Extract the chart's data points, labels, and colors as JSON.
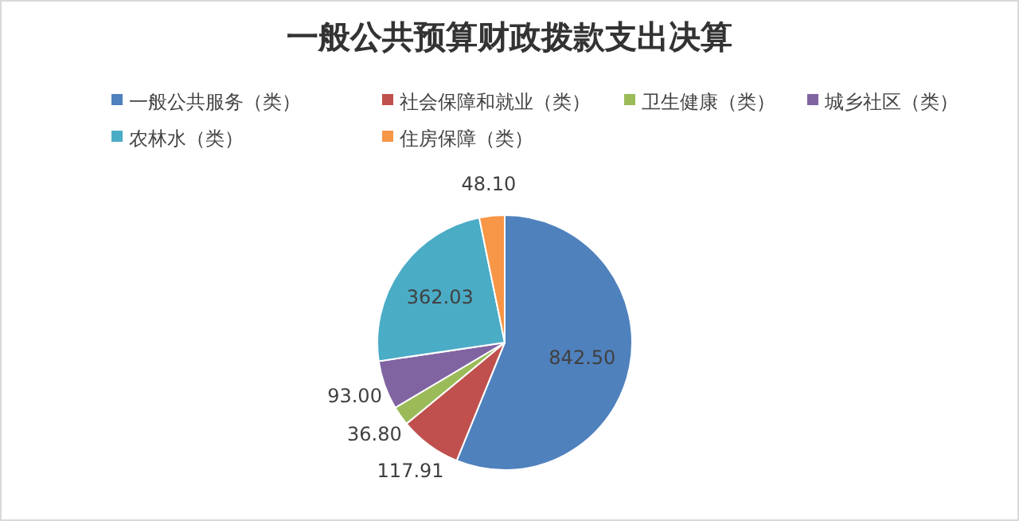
{
  "chart_data": {
    "type": "pie",
    "title": "一般公共预算财政拨款支出决算",
    "categories": [
      "一般公共服务（类）",
      "社会保障和就业（类）",
      "卫生健康（类）",
      "城乡社区（类）",
      "农林水（类）",
      "住房保障（类）"
    ],
    "values": [
      842.5,
      117.91,
      36.8,
      93.0,
      362.03,
      48.1
    ],
    "colors": [
      "#4f81bd",
      "#c0504d",
      "#9bbb59",
      "#8064a2",
      "#4bacc6",
      "#f79646"
    ],
    "value_labels": [
      "842.50",
      "117.91",
      "36.80",
      "93.00",
      "362.03",
      "48.10"
    ],
    "legend": "top"
  }
}
